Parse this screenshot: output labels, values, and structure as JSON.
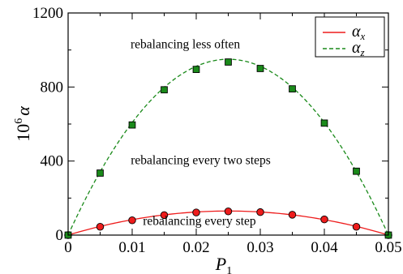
{
  "chart_data": {
    "type": "line",
    "xlabel": "P",
    "xlabel_subscript": "1",
    "ylabel": "10",
    "ylabel_superscript": "6",
    "ylabel_symbol": "α",
    "xlim": [
      0,
      0.05
    ],
    "ylim": [
      0,
      1200
    ],
    "x_ticks": [
      0,
      0.01,
      0.02,
      0.03,
      0.04,
      0.05
    ],
    "x_tick_labels": [
      "0",
      "0.01",
      "0.02",
      "0.03",
      "0.04",
      "0.05"
    ],
    "y_ticks": [
      0,
      400,
      800,
      1200
    ],
    "y_tick_labels": [
      "0",
      "400",
      "800",
      "1200"
    ],
    "grid": false,
    "legend_position": "top-right",
    "legend": [
      {
        "symbol": "α",
        "subscript": "x",
        "color": "#ee1c1c",
        "style": "solid"
      },
      {
        "symbol": "α",
        "subscript": "z",
        "color": "#1a8a1a",
        "style": "dashed"
      }
    ],
    "series": [
      {
        "key": "alpha_x",
        "color": "#ee1c1c",
        "line_style": "solid",
        "marker": "circle",
        "curve_peak": 130,
        "x": [
          0,
          0.005,
          0.01,
          0.015,
          0.02,
          0.025,
          0.03,
          0.035,
          0.04,
          0.045,
          0.05
        ],
        "values": [
          0,
          45,
          80,
          108,
          122,
          128,
          124,
          110,
          85,
          45,
          0
        ]
      },
      {
        "key": "alpha_z",
        "color": "#1a8a1a",
        "line_style": "dashed",
        "marker": "square",
        "curve_peak": 950,
        "x": [
          0,
          0.005,
          0.01,
          0.015,
          0.02,
          0.025,
          0.03,
          0.035,
          0.04,
          0.045,
          0.05
        ],
        "values": [
          0,
          335,
          595,
          785,
          895,
          935,
          900,
          790,
          605,
          345,
          0
        ]
      }
    ],
    "annotations": [
      {
        "text": "rebalancing less often",
        "x": 0.0183,
        "y": 1010
      },
      {
        "text": "rebalancing every two steps",
        "x": 0.0207,
        "y": 383
      },
      {
        "text": "rebalancing every step",
        "x": 0.0205,
        "y": 55
      }
    ]
  }
}
